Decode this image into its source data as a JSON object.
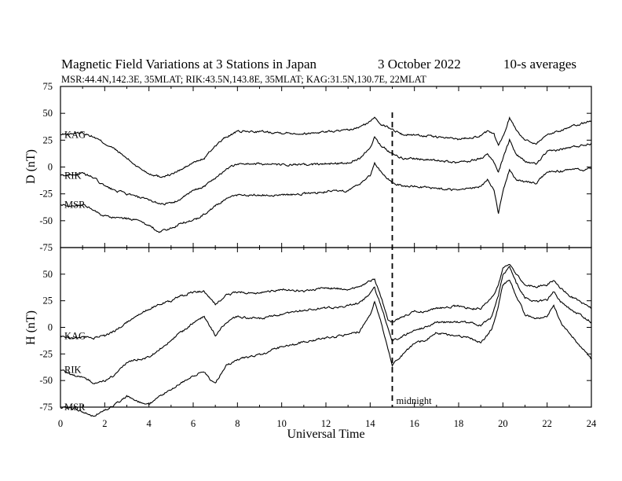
{
  "title": {
    "main": "Magnetic Field Variations at 3 Stations in Japan",
    "date": "3   October 2022",
    "averaging": "10-s averages"
  },
  "subtitle": "MSR:44.4N,142.3E, 35MLAT;  RIK:43.5N,143.8E, 35MLAT;  KAG:31.5N,130.7E, 22MLAT",
  "colors": {
    "line": "#000000",
    "background": "#ffffff"
  },
  "chart_data": [
    {
      "type": "line",
      "ylabel": "D (nT)",
      "ylim": [
        -75,
        75
      ],
      "yticks": [
        "75",
        "50",
        "25",
        "0",
        "-25",
        "-50",
        "-75"
      ],
      "xlim": [
        0,
        24
      ],
      "series": [
        {
          "name": "KAG",
          "x": [
            0,
            0.5,
            1,
            1.5,
            2,
            2.5,
            3,
            3.5,
            4,
            4.5,
            5,
            5.5,
            6,
            6.5,
            7,
            7.5,
            8,
            9,
            10,
            11,
            12,
            13,
            13.5,
            14,
            14.2,
            14.5,
            15,
            15.5,
            16,
            17,
            18,
            19,
            19.3,
            19.6,
            19.8,
            20,
            20.3,
            20.6,
            21,
            21.5,
            22,
            23,
            24
          ],
          "y": [
            30,
            31,
            32,
            28,
            22,
            16,
            8,
            0,
            -6,
            -9,
            -7,
            -2,
            4,
            8,
            20,
            28,
            33,
            33,
            32,
            31,
            33,
            34,
            37,
            42,
            47,
            40,
            35,
            30,
            30,
            28,
            26,
            29,
            33,
            30,
            20,
            28,
            46,
            35,
            25,
            22,
            30,
            37,
            43
          ]
        },
        {
          "name": "RIK",
          "x": [
            0,
            0.5,
            1,
            1.5,
            2,
            2.5,
            3,
            3.5,
            4,
            4.5,
            5,
            5.5,
            6,
            6.5,
            7,
            7.5,
            8,
            9,
            10,
            11,
            12,
            13,
            13.5,
            14,
            14.2,
            14.5,
            15,
            15.5,
            16,
            17,
            18,
            19,
            19.3,
            19.6,
            19.8,
            20,
            20.3,
            20.6,
            21,
            21.5,
            22,
            23,
            24
          ],
          "y": [
            -8,
            -7,
            -6,
            -10,
            -18,
            -22,
            -25,
            -28,
            -31,
            -34,
            -34,
            -29,
            -22,
            -18,
            -10,
            -2,
            3,
            3,
            2,
            2,
            3,
            4,
            8,
            18,
            28,
            20,
            12,
            8,
            8,
            6,
            4,
            8,
            12,
            4,
            -5,
            8,
            25,
            12,
            5,
            3,
            14,
            18,
            22
          ]
        },
        {
          "name": "MSR",
          "x": [
            0,
            0.5,
            1,
            1.5,
            2,
            2.5,
            3,
            3.5,
            4,
            4.5,
            5,
            5.5,
            6,
            6.5,
            7,
            7.5,
            8,
            9,
            10,
            11,
            12,
            13,
            13.5,
            14,
            14.2,
            14.5,
            15,
            15.5,
            16,
            17,
            18,
            19,
            19.3,
            19.6,
            19.8,
            20,
            20.3,
            20.6,
            21,
            21.5,
            22,
            23,
            24
          ],
          "y": [
            -35,
            -36,
            -35,
            -40,
            -46,
            -47,
            -48,
            -50,
            -55,
            -60,
            -57,
            -52,
            -50,
            -44,
            -36,
            -30,
            -26,
            -26,
            -26,
            -25,
            -23,
            -22,
            -16,
            -8,
            4,
            -5,
            -15,
            -18,
            -18,
            -20,
            -22,
            -18,
            -12,
            -22,
            -44,
            -22,
            -2,
            -12,
            -14,
            -15,
            -5,
            -3,
            -2
          ]
        }
      ]
    },
    {
      "type": "line",
      "xlabel": "Universal Time",
      "ylabel": "H (nT)",
      "ylim": [
        -75,
        75
      ],
      "yticks": [
        "",
        "50",
        "25",
        "0",
        "-25",
        "-50",
        "-75"
      ],
      "xlim": [
        0,
        24
      ],
      "xticks": [
        "0",
        "2",
        "4",
        "6",
        "8",
        "10",
        "12",
        "14",
        "16",
        "18",
        "20",
        "22",
        "24"
      ],
      "series": [
        {
          "name": "KAG",
          "x": [
            0,
            0.5,
            1,
            1.5,
            2,
            2.5,
            3,
            3.5,
            4,
            4.5,
            5,
            5.5,
            6,
            6.5,
            6.8,
            7,
            7.5,
            8,
            9,
            10,
            11,
            12,
            13,
            13.5,
            14,
            14.2,
            14.5,
            14.8,
            15,
            15.5,
            16,
            16.5,
            17,
            18,
            18.5,
            19,
            19.5,
            19.8,
            20,
            20.3,
            20.6,
            21,
            21.5,
            22,
            22.3,
            22.6,
            23,
            24
          ],
          "y": [
            -8,
            -10,
            -9,
            -10,
            -8,
            -3,
            5,
            12,
            17,
            22,
            25,
            30,
            33,
            34,
            26,
            22,
            30,
            33,
            32,
            36,
            34,
            37,
            36,
            38,
            44,
            45,
            28,
            8,
            5,
            10,
            15,
            15,
            18,
            20,
            18,
            17,
            28,
            40,
            55,
            60,
            50,
            40,
            38,
            40,
            44,
            37,
            30,
            18
          ]
        },
        {
          "name": "RIK",
          "x": [
            0,
            0.5,
            1,
            1.5,
            2,
            2.5,
            3,
            3.5,
            4,
            4.5,
            5,
            5.5,
            6,
            6.5,
            6.8,
            7,
            7.5,
            8,
            9,
            10,
            11,
            12,
            13,
            13.5,
            14,
            14.2,
            14.5,
            14.8,
            15,
            15.5,
            16,
            16.5,
            17,
            18,
            18.5,
            19,
            19.5,
            19.8,
            20,
            20.3,
            20.6,
            21,
            21.5,
            22,
            22.3,
            22.6,
            23,
            24
          ],
          "y": [
            -40,
            -44,
            -47,
            -52,
            -50,
            -44,
            -33,
            -30,
            -28,
            -20,
            -12,
            -4,
            4,
            10,
            0,
            -8,
            5,
            10,
            8,
            12,
            16,
            18,
            20,
            23,
            32,
            37,
            20,
            0,
            -13,
            -8,
            -2,
            0,
            5,
            5,
            5,
            2,
            10,
            30,
            50,
            57,
            42,
            28,
            24,
            26,
            34,
            24,
            18,
            5
          ]
        },
        {
          "name": "MSR",
          "x": [
            0,
            0.5,
            1,
            1.5,
            2,
            2.5,
            3,
            3.5,
            4,
            4.5,
            5,
            5.5,
            6,
            6.5,
            6.8,
            7,
            7.5,
            8,
            9,
            10,
            11,
            12,
            13,
            13.5,
            14,
            14.2,
            14.5,
            14.8,
            15,
            15.5,
            16,
            16.5,
            17,
            18,
            18.5,
            19,
            19.5,
            19.8,
            20,
            20.3,
            20.6,
            21,
            21.5,
            22,
            22.3,
            22.6,
            23,
            24
          ],
          "y": [
            -75,
            -76,
            -79,
            -83,
            -78,
            -72,
            -65,
            -70,
            -72,
            -65,
            -58,
            -52,
            -45,
            -42,
            -50,
            -52,
            -36,
            -30,
            -26,
            -18,
            -14,
            -10,
            -7,
            -4,
            12,
            24,
            5,
            -20,
            -35,
            -25,
            -15,
            -12,
            -5,
            -8,
            -10,
            -15,
            -2,
            20,
            40,
            45,
            30,
            12,
            8,
            10,
            20,
            5,
            -5,
            -30
          ]
        }
      ],
      "annotations": [
        {
          "text": "midnight",
          "x": 15
        }
      ]
    }
  ],
  "marker_line": {
    "x": 15,
    "style": "dashed"
  }
}
